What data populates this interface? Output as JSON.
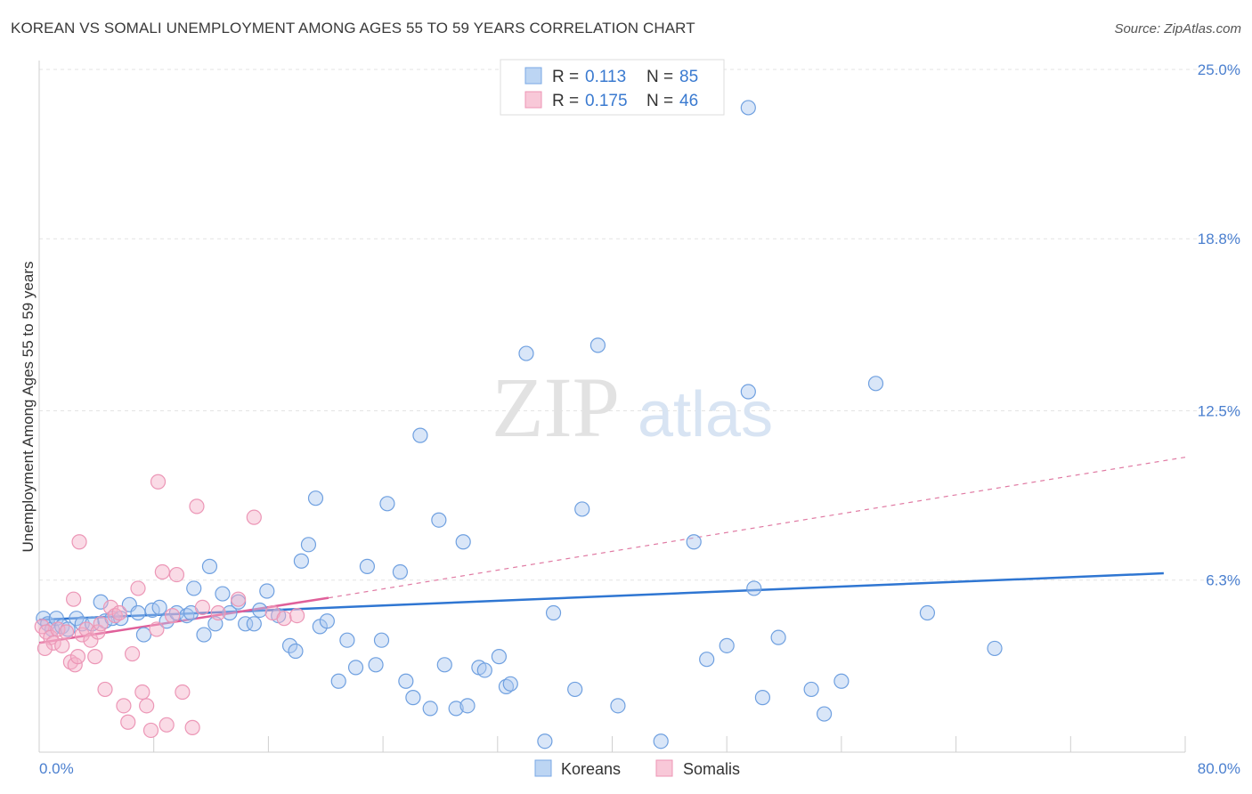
{
  "title": "KOREAN VS SOMALI UNEMPLOYMENT AMONG AGES 55 TO 59 YEARS CORRELATION CHART",
  "source": "Source: ZipAtlas.com",
  "watermark": {
    "zip": "ZIP",
    "atlas": "atlas"
  },
  "legend": {
    "r_label": "R =",
    "n_label": "N =",
    "rows": [
      {
        "series": "Koreans",
        "r": "0.113",
        "n": "85",
        "color": "#9fc3ee"
      },
      {
        "series": "Somalis",
        "r": "0.175",
        "n": "46",
        "color": "#f5b3c8"
      }
    ]
  },
  "chart_data": {
    "type": "scatter",
    "title": "KOREAN VS SOMALI UNEMPLOYMENT AMONG AGES 55 TO 59 YEARS CORRELATION CHART",
    "xlabel": "",
    "ylabel": "Unemployment Among Ages 55 to 59 years",
    "xlim": [
      0,
      80
    ],
    "ylim": [
      0,
      25
    ],
    "x_tick_labels": [
      "0.0%",
      "80.0%"
    ],
    "y_ticks": [
      6.3,
      12.5,
      18.8,
      25.0
    ],
    "y_tick_labels": [
      "6.3%",
      "12.5%",
      "18.8%",
      "25.0%"
    ],
    "grid": true,
    "legend_position": "top-center",
    "series": [
      {
        "name": "Koreans",
        "color": "#6fa6e6",
        "trend": {
          "x0": 0,
          "y0": 4.85,
          "x1": 78.5,
          "y1": 6.55,
          "color": "#2f76d2"
        },
        "points": [
          [
            0.3,
            4.9
          ],
          [
            0.6,
            4.7
          ],
          [
            0.9,
            4.5
          ],
          [
            1.2,
            4.9
          ],
          [
            1.6,
            4.6
          ],
          [
            2.0,
            4.5
          ],
          [
            2.6,
            4.9
          ],
          [
            3.0,
            4.7
          ],
          [
            3.7,
            4.7
          ],
          [
            4.3,
            5.5
          ],
          [
            4.6,
            4.8
          ],
          [
            5.1,
            4.9
          ],
          [
            5.7,
            4.9
          ],
          [
            6.3,
            5.4
          ],
          [
            6.9,
            5.1
          ],
          [
            7.3,
            4.3
          ],
          [
            7.9,
            5.2
          ],
          [
            8.4,
            5.3
          ],
          [
            8.9,
            4.8
          ],
          [
            9.6,
            5.1
          ],
          [
            10.3,
            5.0
          ],
          [
            10.6,
            5.1
          ],
          [
            10.8,
            6.0
          ],
          [
            11.5,
            4.3
          ],
          [
            11.9,
            6.8
          ],
          [
            12.3,
            4.7
          ],
          [
            12.8,
            5.8
          ],
          [
            13.3,
            5.1
          ],
          [
            13.9,
            5.5
          ],
          [
            14.4,
            4.7
          ],
          [
            15.0,
            4.7
          ],
          [
            15.4,
            5.2
          ],
          [
            15.9,
            5.9
          ],
          [
            16.7,
            5.0
          ],
          [
            17.5,
            3.9
          ],
          [
            17.9,
            3.7
          ],
          [
            18.3,
            7.0
          ],
          [
            18.8,
            7.6
          ],
          [
            19.3,
            9.3
          ],
          [
            19.6,
            4.6
          ],
          [
            20.1,
            4.8
          ],
          [
            20.9,
            2.6
          ],
          [
            21.5,
            4.1
          ],
          [
            22.1,
            3.1
          ],
          [
            22.9,
            6.8
          ],
          [
            23.5,
            3.2
          ],
          [
            23.9,
            4.1
          ],
          [
            24.3,
            9.1
          ],
          [
            25.2,
            6.6
          ],
          [
            25.6,
            2.6
          ],
          [
            26.1,
            2.0
          ],
          [
            26.6,
            11.6
          ],
          [
            27.3,
            1.6
          ],
          [
            27.9,
            8.5
          ],
          [
            28.3,
            3.2
          ],
          [
            29.1,
            1.6
          ],
          [
            29.6,
            7.7
          ],
          [
            29.9,
            1.7
          ],
          [
            30.7,
            3.1
          ],
          [
            31.1,
            3.0
          ],
          [
            32.1,
            3.5
          ],
          [
            32.6,
            2.4
          ],
          [
            32.9,
            2.5
          ],
          [
            34.0,
            14.6
          ],
          [
            35.3,
            0.4
          ],
          [
            35.9,
            5.1
          ],
          [
            37.4,
            2.3
          ],
          [
            37.9,
            8.9
          ],
          [
            39.0,
            14.9
          ],
          [
            40.4,
            1.7
          ],
          [
            43.4,
            0.4
          ],
          [
            45.7,
            7.7
          ],
          [
            46.6,
            3.4
          ],
          [
            48.0,
            3.9
          ],
          [
            49.5,
            13.2
          ],
          [
            49.9,
            6.0
          ],
          [
            50.5,
            2.0
          ],
          [
            51.6,
            4.2
          ],
          [
            53.9,
            2.3
          ],
          [
            54.8,
            1.4
          ],
          [
            56.0,
            2.6
          ],
          [
            58.4,
            13.5
          ],
          [
            62.0,
            5.1
          ],
          [
            66.7,
            3.8
          ],
          [
            49.5,
            23.6
          ]
        ]
      },
      {
        "name": "Somalis",
        "color": "#f29ab8",
        "trend": {
          "x0": 0,
          "y0": 4.0,
          "x1": 20.2,
          "y1": 5.65,
          "color": "#e0609a"
        },
        "trend_extension": {
          "x0": 20.2,
          "y0": 5.65,
          "x1": 80,
          "y1": 10.8
        },
        "points": [
          [
            0.2,
            4.6
          ],
          [
            0.5,
            4.4
          ],
          [
            0.8,
            4.2
          ],
          [
            1.0,
            4.0
          ],
          [
            1.3,
            4.5
          ],
          [
            1.6,
            3.9
          ],
          [
            1.9,
            4.4
          ],
          [
            2.2,
            3.3
          ],
          [
            2.5,
            3.2
          ],
          [
            2.7,
            3.5
          ],
          [
            3.0,
            4.3
          ],
          [
            3.3,
            4.5
          ],
          [
            3.6,
            4.1
          ],
          [
            3.9,
            3.5
          ],
          [
            4.1,
            4.4
          ],
          [
            4.3,
            4.7
          ],
          [
            4.6,
            2.3
          ],
          [
            5.0,
            5.3
          ],
          [
            5.3,
            5.0
          ],
          [
            5.6,
            5.1
          ],
          [
            5.9,
            1.7
          ],
          [
            6.2,
            1.1
          ],
          [
            6.5,
            3.6
          ],
          [
            6.9,
            6.0
          ],
          [
            7.2,
            2.2
          ],
          [
            7.5,
            1.7
          ],
          [
            7.8,
            0.8
          ],
          [
            8.2,
            4.5
          ],
          [
            8.6,
            6.6
          ],
          [
            8.9,
            1.0
          ],
          [
            9.3,
            5.0
          ],
          [
            9.6,
            6.5
          ],
          [
            10.0,
            2.2
          ],
          [
            10.7,
            0.9
          ],
          [
            11.0,
            9.0
          ],
          [
            11.4,
            5.3
          ],
          [
            12.5,
            5.1
          ],
          [
            13.9,
            5.6
          ],
          [
            15.0,
            8.6
          ],
          [
            16.3,
            5.1
          ],
          [
            17.1,
            4.9
          ],
          [
            18.0,
            5.0
          ],
          [
            8.3,
            9.9
          ],
          [
            2.8,
            7.7
          ],
          [
            2.4,
            5.6
          ],
          [
            0.4,
            3.8
          ]
        ]
      }
    ]
  },
  "bottom_legend": [
    "Koreans",
    "Somalis"
  ]
}
